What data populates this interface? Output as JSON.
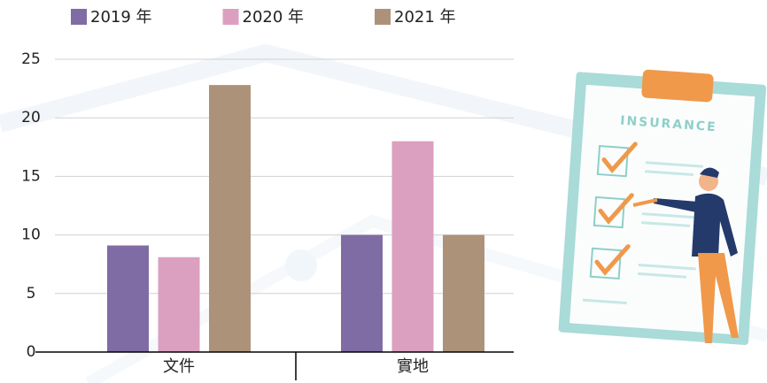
{
  "chart_data": {
    "type": "bar",
    "categories": [
      "文件",
      "實地"
    ],
    "series": [
      {
        "name": "2019 年",
        "color": "#7f6ca5",
        "values": [
          9.1,
          10
        ]
      },
      {
        "name": "2020 年",
        "color": "#dba0bf",
        "values": [
          8.1,
          18
        ]
      },
      {
        "name": "2021 年",
        "color": "#ad927a",
        "values": [
          22.8,
          10
        ]
      }
    ],
    "ylim": [
      0,
      25
    ],
    "yticks": [
      0,
      5,
      10,
      15,
      20,
      25
    ],
    "grid": true,
    "legend": "top",
    "annotations": [
      "INSURANCE"
    ]
  }
}
